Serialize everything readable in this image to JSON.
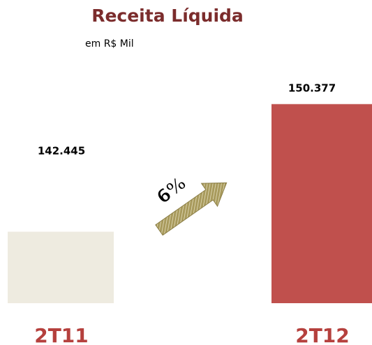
{
  "chart_data": {
    "type": "bar",
    "title": "Receita Líquida",
    "subtitle": "em R$ Mil",
    "categories": [
      "2T11",
      "2T12"
    ],
    "values": [
      142445,
      150377
    ],
    "value_labels": [
      "142.445",
      "150.377"
    ],
    "colors": [
      "#eeebe0",
      "#c0504d"
    ],
    "ylim": [
      138000,
      151000
    ],
    "annotation": "6%"
  }
}
